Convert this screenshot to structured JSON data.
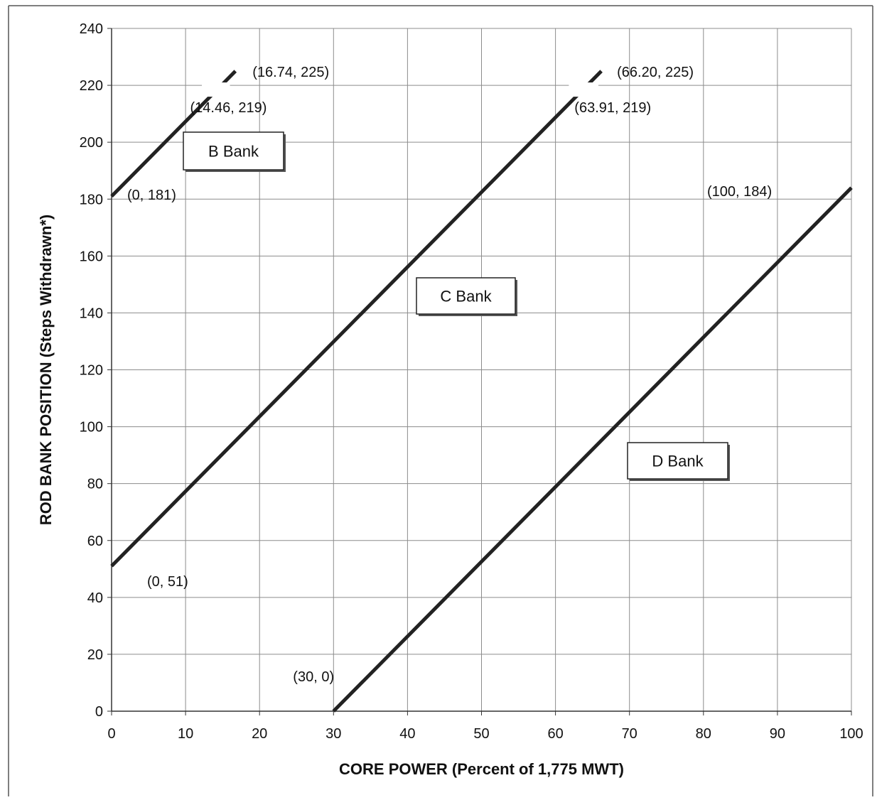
{
  "chart_data": {
    "type": "line",
    "xlabel": "CORE POWER (Percent of 1,775 MWT)",
    "ylabel": "ROD BANK POSITION (Steps Withdrawn*)",
    "xlim": [
      0,
      100
    ],
    "ylim": [
      0,
      240
    ],
    "x_ticks": [
      0,
      10,
      20,
      30,
      40,
      50,
      60,
      70,
      80,
      90,
      100
    ],
    "y_ticks": [
      0,
      20,
      40,
      60,
      80,
      100,
      120,
      140,
      160,
      180,
      200,
      220,
      240
    ],
    "grid": true,
    "series": [
      {
        "name": "B Bank",
        "points": [
          [
            0,
            181
          ],
          [
            14.46,
            219
          ],
          [
            16.74,
            225
          ]
        ]
      },
      {
        "name": "C Bank",
        "points": [
          [
            0,
            51
          ],
          [
            63.91,
            219
          ],
          [
            66.2,
            225
          ]
        ]
      },
      {
        "name": "D Bank",
        "points": [
          [
            30,
            0
          ],
          [
            100,
            184
          ]
        ]
      }
    ],
    "point_labels": [
      {
        "text": "(16.74, 225)",
        "x": 16.74,
        "y": 225
      },
      {
        "text": "(14.46, 219)",
        "x": 14.46,
        "y": 219
      },
      {
        "text": "(0, 181)",
        "x": 0,
        "y": 181
      },
      {
        "text": "(66.20, 225)",
        "x": 66.2,
        "y": 225
      },
      {
        "text": "(63.91, 219)",
        "x": 63.91,
        "y": 219
      },
      {
        "text": "(0, 51)",
        "x": 0,
        "y": 51
      },
      {
        "text": "(100, 184)",
        "x": 100,
        "y": 184
      },
      {
        "text": "(30, 0)",
        "x": 30,
        "y": 0
      }
    ],
    "bank_labels": [
      "B Bank",
      "C Bank",
      "D Bank"
    ],
    "colors": {
      "line": "#222222",
      "grid": "#8c8c8c",
      "axis": "#333333"
    }
  }
}
